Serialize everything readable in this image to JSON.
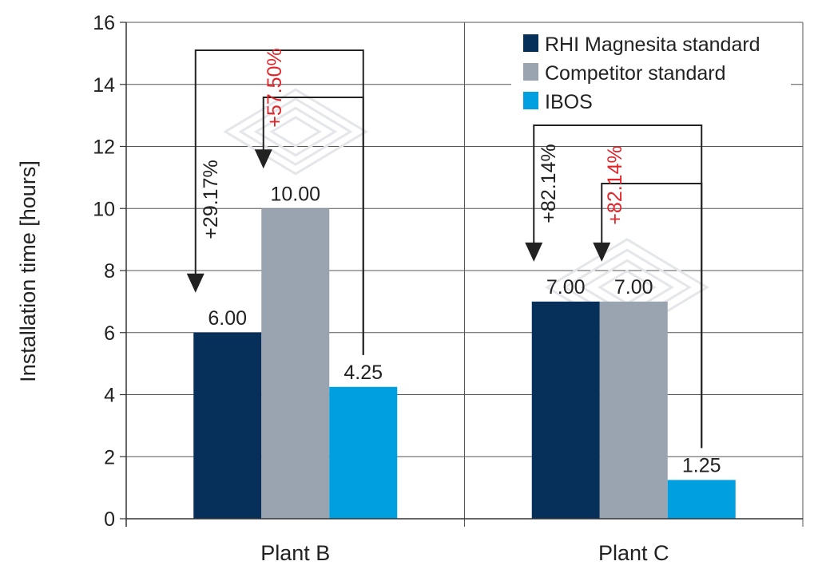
{
  "chart_data": {
    "type": "bar",
    "title": "",
    "xlabel": "",
    "ylabel": "Installation time [hours]",
    "ylim": [
      0,
      16
    ],
    "yticks": [
      0,
      2,
      4,
      6,
      8,
      10,
      12,
      14,
      16
    ],
    "grid": true,
    "legend_position": "top-right",
    "categories": [
      "Plant B",
      "Plant C"
    ],
    "series": [
      {
        "name": "RHI Magnesita standard",
        "color": "#06305a",
        "values": [
          6.0,
          7.0
        ],
        "labels": [
          "6.00",
          "7.00"
        ]
      },
      {
        "name": "Competitor standard",
        "color": "#9aa4b0",
        "values": [
          10.0,
          7.0
        ],
        "labels": [
          "10.00",
          "7.00"
        ]
      },
      {
        "name": "IBOS",
        "color": "#00a0e0",
        "values": [
          4.25,
          1.25
        ],
        "labels": [
          "4.25",
          "1.25"
        ]
      }
    ],
    "annotations": [
      {
        "text": "+29.17%",
        "color": "#222222",
        "category": "Plant B",
        "from_series": "IBOS",
        "to_series": "RHI Magnesita standard"
      },
      {
        "text": "+57.50%",
        "color": "#e0262b",
        "category": "Plant B",
        "from_series": "IBOS",
        "to_series": "Competitor standard"
      },
      {
        "text": "+82.14%",
        "color": "#222222",
        "category": "Plant C",
        "from_series": "IBOS",
        "to_series": "RHI Magnesita standard"
      },
      {
        "text": "+82.14%",
        "color": "#e0262b",
        "category": "Plant C",
        "from_series": "IBOS",
        "to_series": "Competitor standard"
      }
    ]
  }
}
